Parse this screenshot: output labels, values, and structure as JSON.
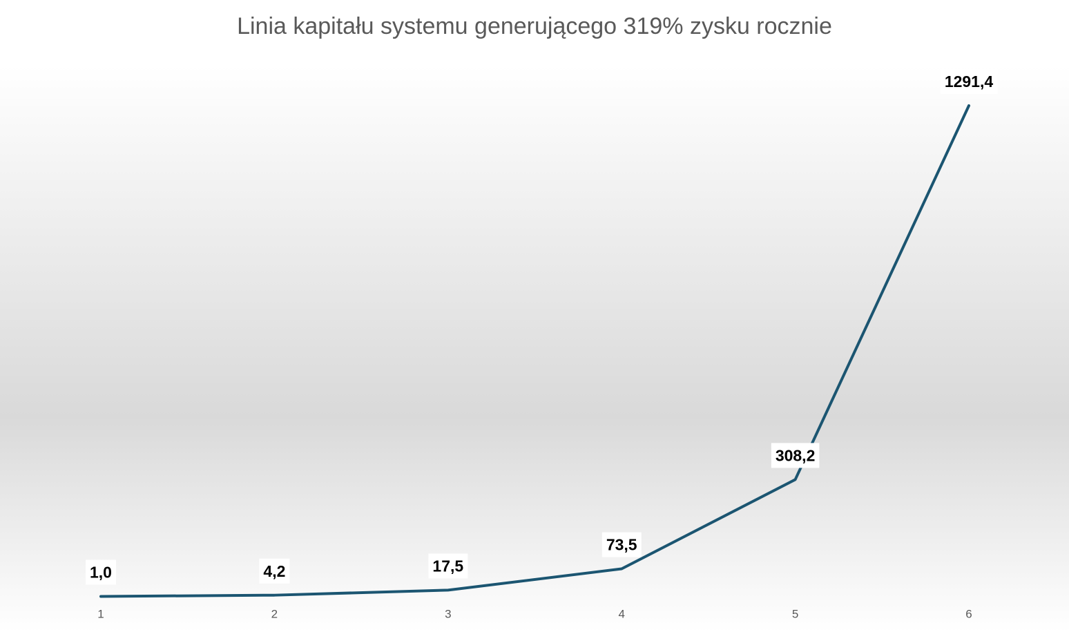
{
  "chart_data": {
    "type": "line",
    "title": "Linia kapitału systemu generującego 319% zysku rocznie",
    "categories": [
      "1",
      "2",
      "3",
      "4",
      "5",
      "6"
    ],
    "series": [
      {
        "color": "#1b5571",
        "values": [
          1.0,
          4.2,
          17.5,
          73.5,
          308.2,
          1291.4
        ],
        "value_labels": [
          "1,0",
          "4,2",
          "17,5",
          "73,5",
          "308,2",
          "1291,4"
        ]
      }
    ]
  }
}
